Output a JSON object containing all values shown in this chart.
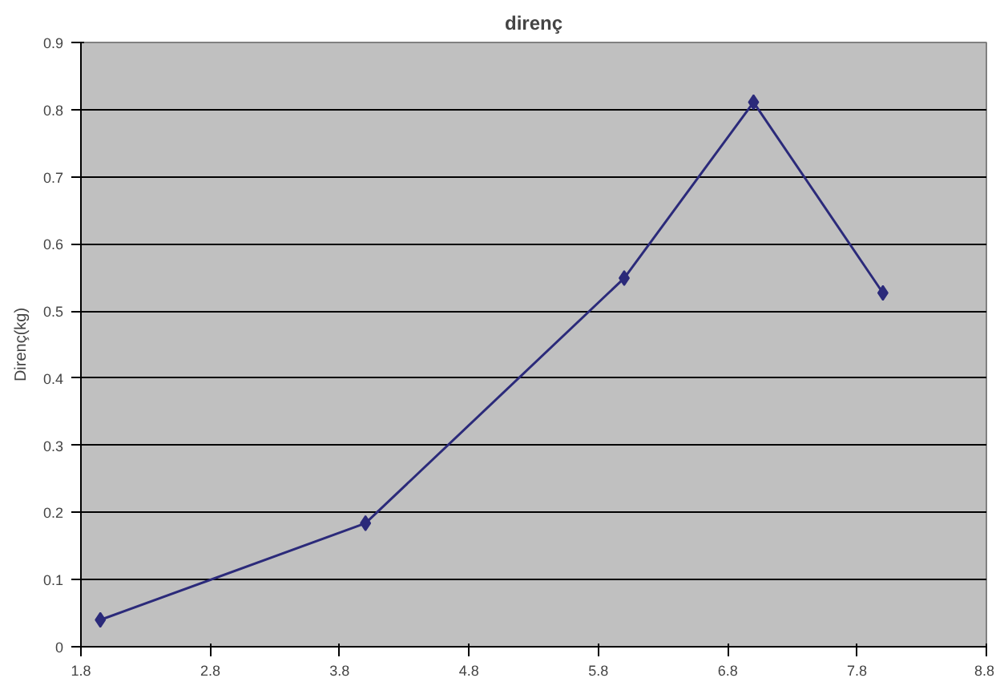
{
  "chart_data": {
    "type": "line",
    "title": "direnç",
    "ylabel": "Direnç(kg)",
    "x": [
      1.95,
      4.0,
      6.0,
      7.0,
      8.0
    ],
    "series": [
      {
        "color": "#2b2a7a",
        "values": [
          0.04,
          0.184,
          0.549,
          0.811,
          0.527
        ]
      }
    ],
    "xlim": [
      1.8,
      8.8
    ],
    "xticks": [
      1.8,
      2.8,
      3.8,
      4.8,
      5.8,
      6.8,
      7.8,
      8.8
    ],
    "ylim": [
      0,
      0.9
    ],
    "yticks": [
      0,
      0.1,
      0.2,
      0.3,
      0.4,
      0.5,
      0.6,
      0.7,
      0.8,
      0.9
    ],
    "grid": "y",
    "marker": "diamond",
    "line_style": "solid"
  }
}
